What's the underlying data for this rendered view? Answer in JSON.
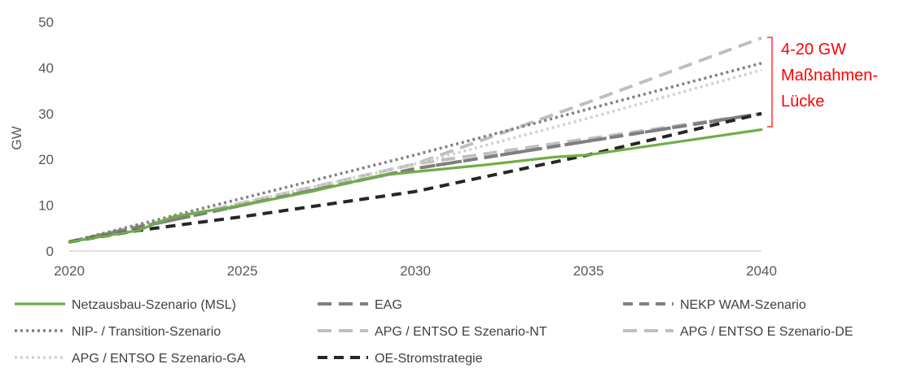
{
  "chart_data": {
    "type": "line",
    "title": "",
    "xlabel": "",
    "ylabel": "GW",
    "xlim": [
      2020,
      2040
    ],
    "ylim": [
      0,
      50
    ],
    "x_ticks": [
      2020,
      2025,
      2030,
      2035,
      2040
    ],
    "y_ticks": [
      0,
      10,
      20,
      30,
      40,
      50
    ],
    "grid": false,
    "legend_position": "bottom",
    "series": [
      {
        "name": "Netzausbau-Szenario (MSL)",
        "color": "#70ad47",
        "style": "solid",
        "points": [
          [
            2020,
            2
          ],
          [
            2022,
            4.5
          ],
          [
            2023,
            7.5
          ],
          [
            2025,
            10
          ],
          [
            2027,
            13
          ],
          [
            2029,
            16.5
          ],
          [
            2030,
            17.3
          ],
          [
            2032,
            18.8
          ],
          [
            2034,
            20.5
          ],
          [
            2035,
            21
          ],
          [
            2040,
            26.5
          ]
        ]
      },
      {
        "name": "EAG",
        "color": "#7f7f7f",
        "style": "longdash",
        "points": [
          [
            2020,
            2
          ],
          [
            2025,
            10
          ],
          [
            2030,
            18
          ],
          [
            2035,
            24
          ],
          [
            2040,
            30
          ]
        ]
      },
      {
        "name": "NEKP WAM-Szenario",
        "color": "#7f7f7f",
        "style": "dash",
        "points": [
          [
            2020,
            2
          ],
          [
            2025,
            10
          ],
          [
            2030,
            18
          ],
          [
            2035,
            24
          ],
          [
            2040,
            30
          ]
        ]
      },
      {
        "name": "NIP- / Transition-Szenario",
        "color": "#808080",
        "style": "dot",
        "points": [
          [
            2020,
            2
          ],
          [
            2025,
            11.5
          ],
          [
            2030,
            21
          ],
          [
            2035,
            31
          ],
          [
            2040,
            41
          ]
        ]
      },
      {
        "name": "APG / ENTSO E Szenario-NT",
        "color": "#bfbfbf",
        "style": "longdash",
        "points": [
          [
            2020,
            2
          ],
          [
            2025,
            10.5
          ],
          [
            2030,
            19
          ],
          [
            2035,
            24.5
          ],
          [
            2040,
            30
          ]
        ]
      },
      {
        "name": "APG / ENTSO E Szenario-DE",
        "color": "#bfbfbf",
        "style": "longdash",
        "points": [
          [
            2020,
            2
          ],
          [
            2025,
            10.5
          ],
          [
            2030,
            19
          ],
          [
            2035,
            32.5
          ],
          [
            2040,
            46.5
          ]
        ]
      },
      {
        "name": "APG / ENTSO E Szenario-GA",
        "color": "#d0d0d0",
        "style": "dot",
        "points": [
          [
            2020,
            2
          ],
          [
            2025,
            10.5
          ],
          [
            2030,
            19
          ],
          [
            2035,
            29
          ],
          [
            2040,
            39.5
          ]
        ]
      },
      {
        "name": "OE-Stromstrategie",
        "color": "#262626",
        "style": "dash",
        "points": [
          [
            2020,
            2
          ],
          [
            2022,
            4.5
          ],
          [
            2025,
            7.5
          ],
          [
            2030,
            13
          ],
          [
            2035,
            21
          ],
          [
            2040,
            30
          ]
        ]
      }
    ],
    "annotation": {
      "lines": [
        "4-20 GW",
        "Maßnahmen-",
        "Lücke"
      ],
      "color": "#ff0000"
    }
  }
}
